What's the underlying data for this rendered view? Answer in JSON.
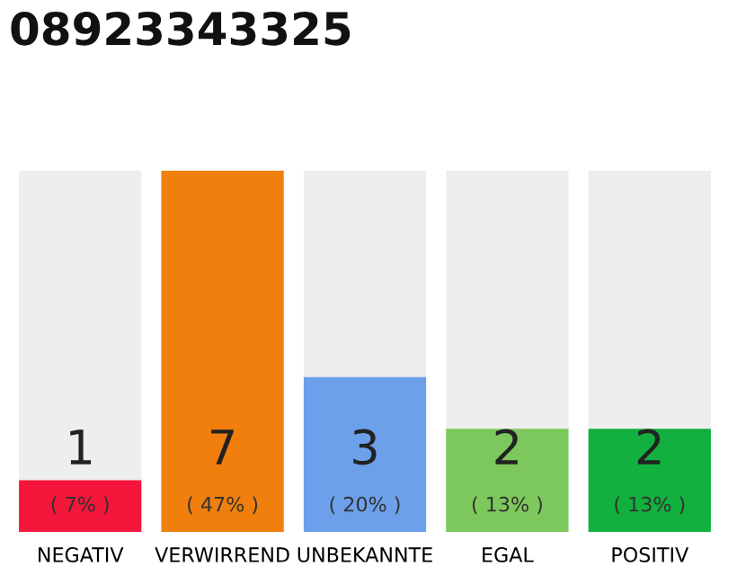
{
  "chart_data": {
    "type": "bar",
    "title": "08923343325",
    "categories": [
      "NEGATIV",
      "VERWIRREND",
      "UNBEKANNTE",
      "EGAL",
      "POSITIV"
    ],
    "values": [
      1,
      7,
      3,
      2,
      2
    ],
    "colors": [
      "#f5163b",
      "#f07f0d",
      "#6ca0ea",
      "#7dc85d",
      "#12b03e"
    ],
    "data_labels": true,
    "ylim": [
      0,
      7
    ],
    "tick_labels": "x",
    "grid": false,
    "legend": false,
    "annotations": [
      "( 7% )",
      "( 47% )",
      "( 20% )",
      "( 13% )",
      "( 13% )"
    ]
  }
}
